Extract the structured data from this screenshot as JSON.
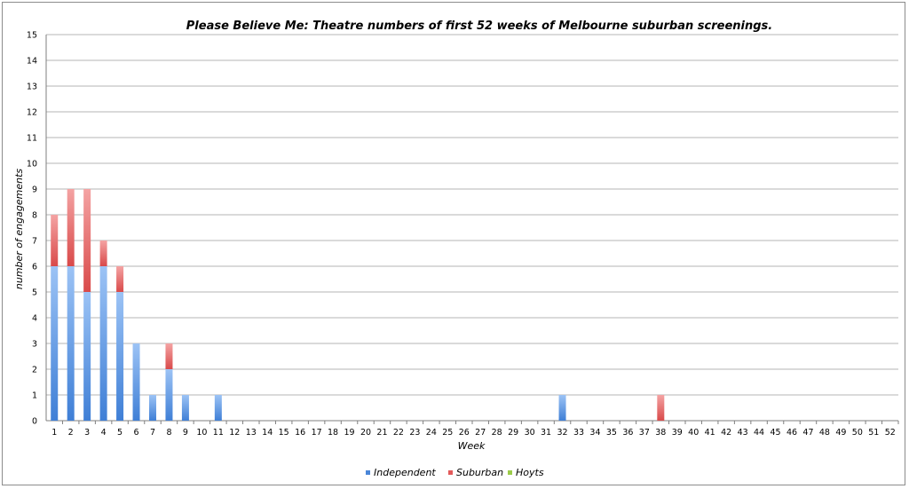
{
  "chart_data": {
    "type": "bar",
    "stacked": true,
    "title": "Please Believe Me: Theatre numbers of first 52 weeks of Melbourne suburban screenings.",
    "xlabel": "Week",
    "ylabel": "number of engagements",
    "ylim": [
      0,
      15
    ],
    "yticks": [
      0,
      1,
      2,
      3,
      4,
      5,
      6,
      7,
      8,
      9,
      10,
      11,
      12,
      13,
      14,
      15
    ],
    "grid": true,
    "legend_position": "bottom",
    "categories": [
      "1",
      "2",
      "3",
      "4",
      "5",
      "6",
      "7",
      "8",
      "9",
      "10",
      "11",
      "12",
      "13",
      "14",
      "15",
      "16",
      "17",
      "18",
      "19",
      "20",
      "21",
      "22",
      "23",
      "24",
      "25",
      "26",
      "27",
      "28",
      "29",
      "30",
      "31",
      "32",
      "33",
      "34",
      "35",
      "36",
      "37",
      "38",
      "39",
      "40",
      "41",
      "42",
      "43",
      "44",
      "45",
      "46",
      "47",
      "48",
      "49",
      "50",
      "51",
      "52"
    ],
    "series": [
      {
        "name": "Independent",
        "color": "#4a86d8",
        "values": [
          6,
          6,
          5,
          6,
          5,
          3,
          1,
          2,
          1,
          0,
          1,
          0,
          0,
          0,
          0,
          0,
          0,
          0,
          0,
          0,
          0,
          0,
          0,
          0,
          0,
          0,
          0,
          0,
          0,
          0,
          0,
          1,
          0,
          0,
          0,
          0,
          0,
          0,
          0,
          0,
          0,
          0,
          0,
          0,
          0,
          0,
          0,
          0,
          0,
          0,
          0,
          0
        ]
      },
      {
        "name": "Suburban",
        "color": "#e35a5a",
        "values": [
          2,
          3,
          4,
          1,
          1,
          0,
          0,
          1,
          0,
          0,
          0,
          0,
          0,
          0,
          0,
          0,
          0,
          0,
          0,
          0,
          0,
          0,
          0,
          0,
          0,
          0,
          0,
          0,
          0,
          0,
          0,
          0,
          0,
          0,
          0,
          0,
          0,
          1,
          0,
          0,
          0,
          0,
          0,
          0,
          0,
          0,
          0,
          0,
          0,
          0,
          0,
          0
        ]
      },
      {
        "name": "Hoyts",
        "color": "#9ccc4a",
        "values": [
          0,
          0,
          0,
          0,
          0,
          0,
          0,
          0,
          0,
          0,
          0,
          0,
          0,
          0,
          0,
          0,
          0,
          0,
          0,
          0,
          0,
          0,
          0,
          0,
          0,
          0,
          0,
          0,
          0,
          0,
          0,
          0,
          0,
          0,
          0,
          0,
          0,
          0,
          0,
          0,
          0,
          0,
          0,
          0,
          0,
          0,
          0,
          0,
          0,
          0,
          0,
          0
        ]
      }
    ]
  }
}
